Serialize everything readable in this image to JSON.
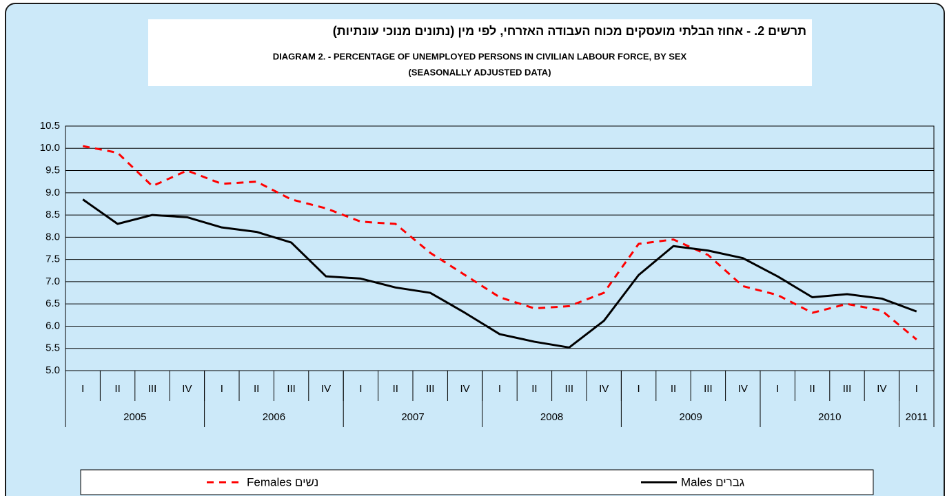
{
  "chart_data": {
    "type": "line",
    "title": "תרשים 2. - אחוז הבלתי מועסקים מכוח העבודה האזרחי, לפי מין (נתונים מנוכי עונתיות)",
    "subtitle": "DIAGRAM 2. - PERCENTAGE OF UNEMPLOYED PERSONS IN CIVILIAN LABOUR FORCE, BY SEX",
    "subtitle2": "(SEASONALLY ADJUSTED DATA)",
    "categories": [
      "I",
      "II",
      "III",
      "IV",
      "I",
      "II",
      "III",
      "IV",
      "I",
      "II",
      "III",
      "IV",
      "I",
      "II",
      "III",
      "IV",
      "I",
      "II",
      "III",
      "IV",
      "I",
      "II",
      "III",
      "IV",
      "I"
    ],
    "year_groups": [
      {
        "label": "2005",
        "count": 4
      },
      {
        "label": "2006",
        "count": 4
      },
      {
        "label": "2007",
        "count": 4
      },
      {
        "label": "2008",
        "count": 4
      },
      {
        "label": "2009",
        "count": 4
      },
      {
        "label": "2010",
        "count": 4
      },
      {
        "label": "2011",
        "count": 1
      }
    ],
    "series": [
      {
        "name": "Females נשים",
        "color": "#ff0000",
        "dash": true,
        "values": [
          10.05,
          9.9,
          9.15,
          9.5,
          9.2,
          9.25,
          8.85,
          8.65,
          8.35,
          8.3,
          7.65,
          7.15,
          6.65,
          6.4,
          6.45,
          6.75,
          7.85,
          7.95,
          7.6,
          6.9,
          6.7,
          6.3,
          6.5,
          6.35,
          5.7
        ]
      },
      {
        "name": "Males גברים",
        "color": "#000000",
        "dash": false,
        "values": [
          8.85,
          8.3,
          8.5,
          8.45,
          8.22,
          8.12,
          7.88,
          7.12,
          7.07,
          6.87,
          6.75,
          6.3,
          5.82,
          5.65,
          5.52,
          6.12,
          7.15,
          7.8,
          7.7,
          7.53,
          7.12,
          6.65,
          6.72,
          6.62,
          6.33
        ]
      }
    ],
    "ylim": [
      5,
      10.5
    ],
    "yticks": [
      {
        "value": 5,
        "label": "5.0"
      },
      5.5,
      {
        "value": 6,
        "label": "6.0"
      },
      6.5,
      {
        "value": 7,
        "label": "7.0"
      },
      7.5,
      {
        "value": 8,
        "label": "8.0"
      },
      8.5,
      {
        "value": 9,
        "label": "9.0"
      },
      9.5,
      {
        "value": 10,
        "label": "10.0"
      },
      10.5
    ],
    "grid": true
  }
}
